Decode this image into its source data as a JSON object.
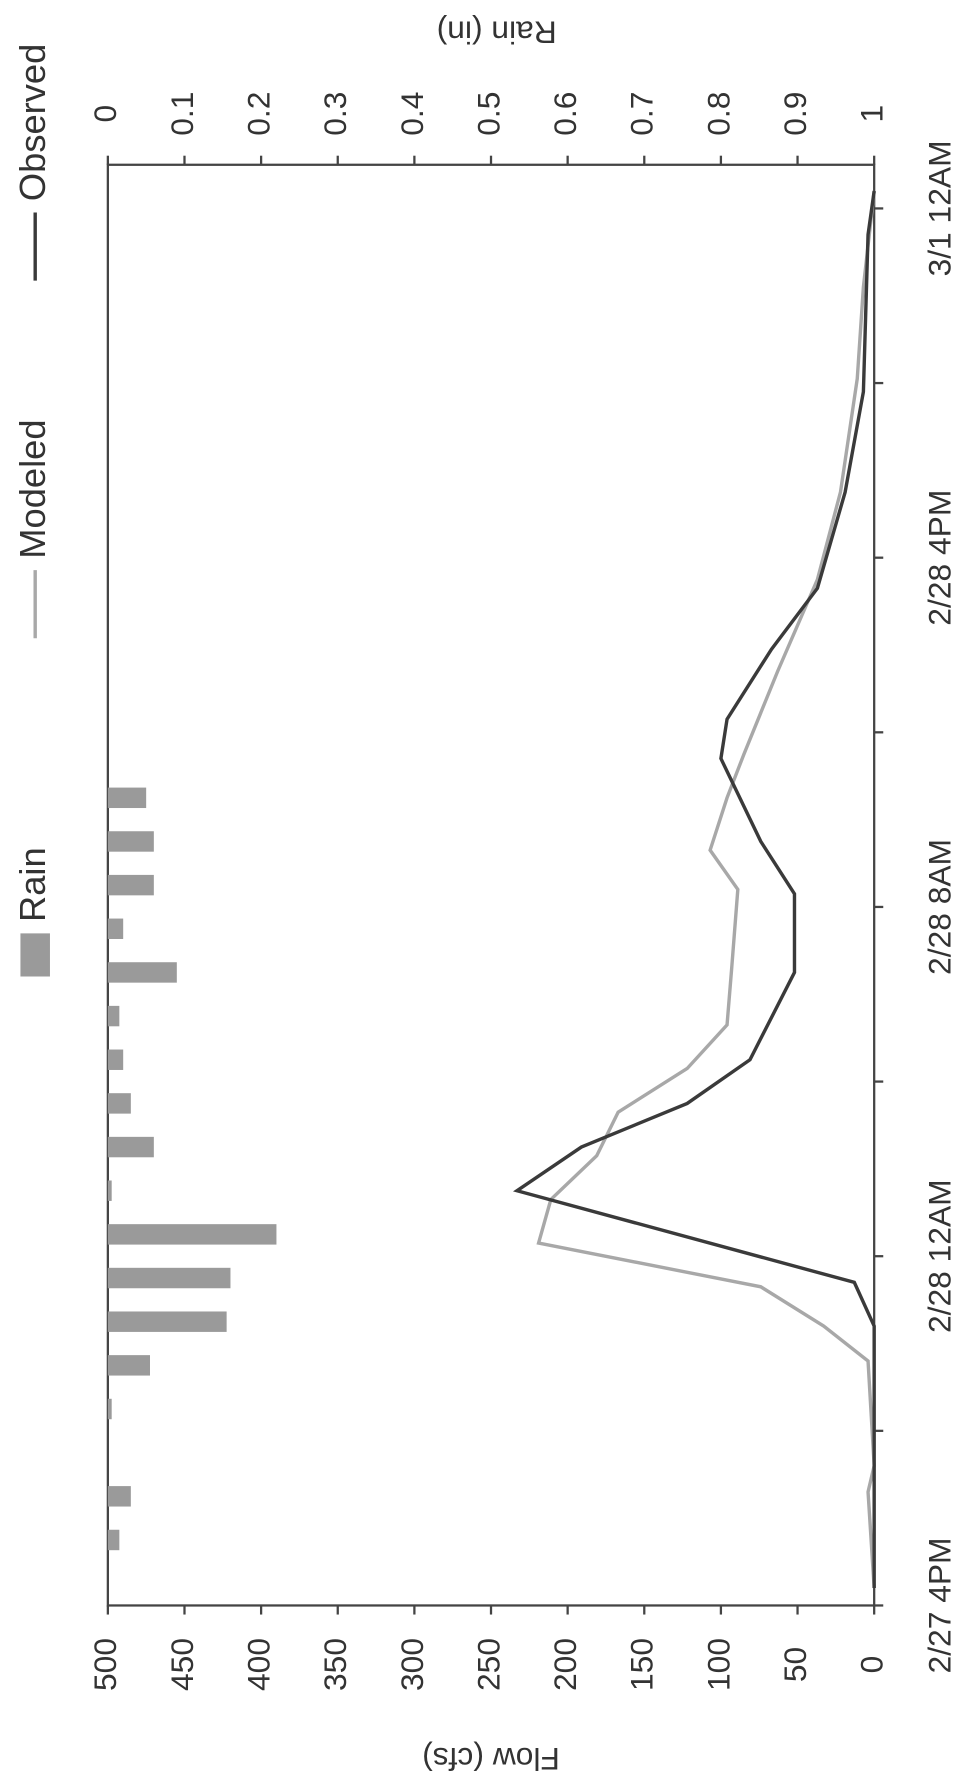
{
  "chart_data": {
    "type": "line",
    "xlim": [
      0,
      33
    ],
    "xticks": [
      {
        "value": 0,
        "label": "2/27 4PM"
      },
      {
        "value": 8,
        "label": "2/28 12AM"
      },
      {
        "value": 16,
        "label": "2/28 8AM"
      },
      {
        "value": 24,
        "label": "2/28 4PM"
      },
      {
        "value": 32,
        "label": "3/1 12AM"
      }
    ],
    "xminorticks": [
      4,
      12,
      20,
      28
    ],
    "ylabel": "Flow (cfs)",
    "ylim": [
      0,
      500
    ],
    "yticks": [
      0,
      50,
      100,
      150,
      200,
      250,
      300,
      350,
      400,
      450,
      500
    ],
    "y2label": "Rain (in)",
    "y2lim": [
      0,
      1
    ],
    "y2ticks": [
      0,
      0.1,
      0.2,
      0.3,
      0.4,
      0.5,
      0.6,
      0.7,
      0.8,
      0.9,
      1
    ],
    "series": [
      {
        "name": "Rain",
        "type": "bar",
        "axis": "y2",
        "color": "#9a9a9a",
        "x": [
          1.5,
          2.5,
          4.5,
          5.5,
          6.5,
          7.5,
          8.5,
          9.5,
          10.5,
          11.5,
          12.5,
          13.5,
          14.5,
          15.5,
          16.5,
          17.5,
          18.5
        ],
        "values": [
          0.015,
          0.03,
          0.005,
          0.055,
          0.155,
          0.16,
          0.22,
          0.005,
          0.06,
          0.03,
          0.02,
          0.015,
          0.09,
          0.02,
          0.06,
          0.06,
          0.05
        ]
      },
      {
        "name": "Modeled",
        "type": "line",
        "color": "#a8a8a8",
        "x": [
          0.4,
          2.6,
          3.2,
          5.6,
          6.4,
          7.3,
          8.3,
          9.3,
          10.3,
          11.3,
          12.3,
          13.3,
          14.6,
          16.4,
          17.3,
          18.5,
          19.5,
          21.4,
          23.5,
          25.5,
          28.1,
          30.2,
          32.4
        ],
        "values": [
          0,
          4,
          0,
          4,
          33,
          74,
          219,
          211,
          181,
          167,
          122,
          96,
          93,
          89,
          107,
          96,
          85,
          63,
          37,
          22,
          11,
          7,
          0
        ]
      },
      {
        "name": "Observed",
        "type": "line",
        "color": "#3a3a3a",
        "x": [
          0.4,
          2.9,
          6.4,
          7.4,
          9.5,
          10.5,
          11.5,
          12.5,
          14.5,
          16.3,
          17.5,
          19.4,
          20.3,
          21.9,
          23.3,
          25.5,
          27.8,
          31.4,
          32.4
        ],
        "values": [
          0,
          0,
          0,
          13,
          233,
          191,
          122,
          81,
          52,
          52,
          74,
          100,
          96,
          67,
          37,
          19,
          7,
          4,
          0
        ]
      }
    ]
  }
}
